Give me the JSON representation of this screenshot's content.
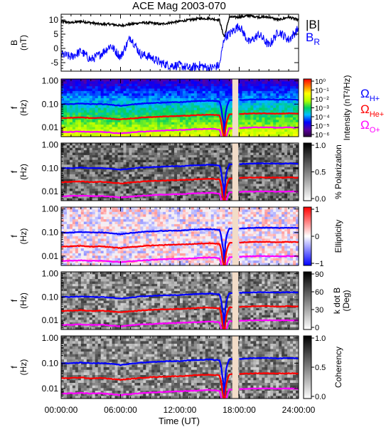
{
  "title": "ACE Mag 2003-070",
  "x_tick_labels": [
    "00:00:00",
    "06:00:00",
    "12:00:00",
    "18:00:00",
    "24:00:00"
  ],
  "x_axis_label": "Time (UT)",
  "colors": {
    "black": "#000000",
    "blue": "#0000ff",
    "red": "#ff0000",
    "magenta": "#ff00ff",
    "gap_fill": "#f2dcc8"
  },
  "chart_data": [
    {
      "type": "line",
      "panel": "B",
      "ylabel_lines": [
        "B",
        "(nT)"
      ],
      "ylim": [
        -8,
        12
      ],
      "yticks": [
        10,
        5,
        0,
        -5
      ],
      "ytick_labels": [
        "10",
        "5",
        "0",
        "-5"
      ],
      "xlim": [
        0,
        24
      ],
      "legend": {
        "placement": "right-outside",
        "entries": [
          {
            "label": "|B|",
            "color": "#000000"
          },
          {
            "label_main": "B",
            "label_sub": "R",
            "color": "#0000ff"
          }
        ]
      },
      "series": [
        {
          "name": "|B|",
          "color": "#000000",
          "x": [
            0,
            1,
            2,
            3,
            4,
            5,
            6,
            7,
            8,
            9,
            10,
            11,
            12,
            13,
            14,
            15,
            16,
            16.3,
            16.5,
            17,
            18,
            19,
            20,
            21,
            22,
            23,
            24
          ],
          "y": [
            9.5,
            9.0,
            9.5,
            9.0,
            8.5,
            8.5,
            8.0,
            8.5,
            9.0,
            9.0,
            8.5,
            9.0,
            9.5,
            10,
            10.5,
            10.5,
            10,
            6,
            4,
            11,
            11,
            11.5,
            11,
            11,
            10,
            11,
            10
          ]
        },
        {
          "name": "B_R",
          "color": "#0000ff",
          "x": [
            0,
            1,
            2,
            3,
            4,
            5,
            6,
            7,
            8,
            9,
            10,
            11,
            12,
            13,
            14,
            15,
            16,
            16.3,
            16.5,
            17,
            18,
            19,
            20,
            21,
            22,
            23,
            24
          ],
          "y": [
            -2,
            -3,
            -1,
            -4,
            -2,
            1,
            -3,
            4,
            -2,
            -3,
            -5,
            -6,
            -6,
            -7,
            -6,
            -7,
            -6,
            0,
            4,
            5,
            8,
            2,
            5,
            1,
            6,
            3,
            7
          ]
        }
      ]
    },
    {
      "type": "heatmap",
      "panel": "intensity",
      "ylabel_lines": [
        "f",
        "(Hz)"
      ],
      "yscale": "log",
      "ylim": [
        0.004,
        1.2
      ],
      "yticks": [
        1.0,
        0.1,
        0.01
      ],
      "ytick_labels": [
        "1.00",
        "0.10",
        "0.01"
      ],
      "colorbar": {
        "label": "Intensity (nT²/Hz)",
        "scale": "log",
        "tick_labels": [
          "10⁰",
          "10⁻¹",
          "10⁻²",
          "10⁻³",
          "10⁻⁴",
          "10⁻⁵",
          "10⁻⁶"
        ]
      },
      "legend": {
        "placement": "right-outside",
        "entries": [
          {
            "main": "Ω",
            "sub": "H+",
            "color": "#0000ff"
          },
          {
            "main": "Ω",
            "sub": "He+",
            "color": "#ff0000"
          },
          {
            "main": "Ω",
            "sub": "O+",
            "color": "#ff00ff"
          }
        ]
      },
      "data_gap_hours": [
        17.3,
        17.9
      ]
    },
    {
      "type": "heatmap",
      "panel": "polarization",
      "ylabel_lines": [
        "f",
        "(Hz)"
      ],
      "yscale": "log",
      "ylim": [
        0.004,
        1.2
      ],
      "yticks": [
        1.0,
        0.1,
        0.01
      ],
      "ytick_labels": [
        "1.00",
        "0.10",
        "0.01"
      ],
      "colorbar": {
        "label": "% Polarization",
        "range": [
          0,
          1
        ],
        "tick_labels": [
          "1.0",
          "0.5",
          "0.0"
        ]
      },
      "data_gap_hours": [
        17.3,
        17.9
      ]
    },
    {
      "type": "heatmap",
      "panel": "ellipticity",
      "ylabel_lines": [
        "f",
        "(Hz)"
      ],
      "yscale": "log",
      "ylim": [
        0.004,
        1.2
      ],
      "yticks": [
        1.0,
        0.1,
        0.01
      ],
      "ytick_labels": [
        "1.00",
        "0.10",
        "0.01"
      ],
      "colorbar": {
        "label": "Ellipticity",
        "range": [
          -1,
          1
        ],
        "tick_labels": [
          "1",
          "0",
          "−1"
        ]
      },
      "data_gap_hours": [
        17.3,
        17.9
      ]
    },
    {
      "type": "heatmap",
      "panel": "kdotb",
      "ylabel_lines": [
        "f",
        "(Hz)"
      ],
      "yscale": "log",
      "ylim": [
        0.004,
        1.2
      ],
      "yticks": [
        1.0,
        0.1,
        0.01
      ],
      "ytick_labels": [
        "1.00",
        "0.10",
        "0.01"
      ],
      "colorbar": {
        "label_lines": [
          "k dot B",
          "(Deg)"
        ],
        "range": [
          0,
          90
        ],
        "tick_labels": [
          "90",
          "60",
          "30",
          "0"
        ]
      },
      "data_gap_hours": [
        17.3,
        17.9
      ]
    },
    {
      "type": "heatmap",
      "panel": "coherency",
      "ylabel_lines": [
        "f",
        "(Hz)"
      ],
      "yscale": "log",
      "ylim": [
        0.004,
        1.2
      ],
      "yticks": [
        1.0,
        0.1,
        0.01
      ],
      "ytick_labels": [
        "1.00",
        "0.10",
        "0.01"
      ],
      "colorbar": {
        "label": "Coherency",
        "range": [
          0,
          1
        ],
        "tick_labels": [
          "1.0",
          "0.5",
          "0.0"
        ]
      },
      "data_gap_hours": [
        17.3,
        17.9
      ]
    }
  ],
  "gyrofrequency_lines": {
    "x": [
      0,
      1,
      2,
      3,
      4,
      5,
      6,
      7,
      8,
      9,
      10,
      11,
      12,
      13,
      14,
      15,
      16,
      16.3,
      16.5,
      17,
      18,
      19,
      20,
      21,
      22,
      23,
      24
    ],
    "H+": [
      0.1,
      0.1,
      0.105,
      0.1,
      0.1,
      0.095,
      0.085,
      0.095,
      0.105,
      0.11,
      0.115,
      0.12,
      0.12,
      0.13,
      0.135,
      0.14,
      0.13,
      0.03,
      0.005,
      0.145,
      0.15,
      0.155,
      0.16,
      0.16,
      0.155,
      0.16,
      0.155
    ],
    "He+": [
      0.025,
      0.026,
      0.027,
      0.025,
      0.026,
      0.024,
      0.022,
      0.024,
      0.026,
      0.028,
      0.029,
      0.03,
      0.031,
      0.032,
      0.034,
      0.035,
      0.033,
      0.008,
      0.0014,
      0.036,
      0.038,
      0.039,
      0.04,
      0.04,
      0.039,
      0.04,
      0.039
    ],
    "O+": [
      0.0062,
      0.0064,
      0.0066,
      0.0063,
      0.0064,
      0.006,
      0.0055,
      0.006,
      0.0065,
      0.0068,
      0.0072,
      0.0075,
      0.0077,
      0.008,
      0.0084,
      0.0087,
      0.0082,
      0.002,
      0.0004,
      0.009,
      0.0095,
      0.0098,
      0.01,
      0.01,
      0.0098,
      0.01,
      0.0098
    ]
  }
}
